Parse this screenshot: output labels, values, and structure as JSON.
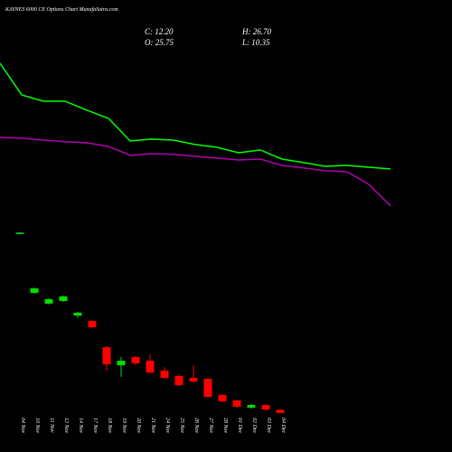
{
  "chart_data": {
    "type": "candlestick",
    "title": "KAYNES 6000 CE Options Chart MunafaSutra.com",
    "info": [
      "C: 12.20",
      "H: 26.70",
      "O: 25.75",
      "L: 10.35"
    ],
    "categories": [
      "04 Nov",
      "10 Nov",
      "11 Nov",
      "12 Nov",
      "14 Nov",
      "17 Nov",
      "18 Nov",
      "19 Nov",
      "20 Nov",
      "21 Nov",
      "24 Nov",
      "25 Nov",
      "26 Nov",
      "27 Nov",
      "28 Nov",
      "01 Dec",
      "02 Dec",
      "03 Dec",
      "04 Dec"
    ],
    "open": [
      778,
      525,
      479,
      490,
      428,
      405,
      293,
      216,
      251,
      235,
      193,
      170,
      162,
      158,
      89,
      66,
      35,
      46,
      25.75
    ],
    "high": [
      784,
      548,
      502,
      514,
      444,
      409,
      297,
      251,
      255,
      262,
      208,
      178,
      216,
      162,
      93,
      69,
      50,
      50,
      26.7
    ],
    "low": [
      776,
      521,
      475,
      486,
      417,
      374,
      193,
      166,
      216,
      181,
      158,
      127,
      139,
      77,
      58,
      35,
      31,
      23,
      10.35
    ],
    "close": [
      782,
      544,
      498,
      510,
      440,
      378,
      220,
      235,
      224,
      185,
      162,
      131,
      147,
      81,
      62,
      39,
      46,
      27,
      12.2
    ],
    "up_color": "#00e000",
    "down_color": "#ff0000",
    "series": [
      {
        "color": "#00ff00",
        "values": [
          1505,
          1370,
          1343,
          1343,
          1305,
          1270,
          1173,
          1181,
          1177,
          1158,
          1146,
          1123,
          1135,
          1096,
          1081,
          1065,
          1069,
          1061,
          1054
        ]
      },
      {
        "color": "#b000b0",
        "values": [
          1189,
          1185,
          1177,
          1170,
          1166,
          1150,
          1112,
          1119,
          1116,
          1108,
          1100,
          1092,
          1096,
          1069,
          1058,
          1046,
          1042,
          988,
          896
        ]
      }
    ],
    "ylim": [
      0,
      1775
    ]
  }
}
